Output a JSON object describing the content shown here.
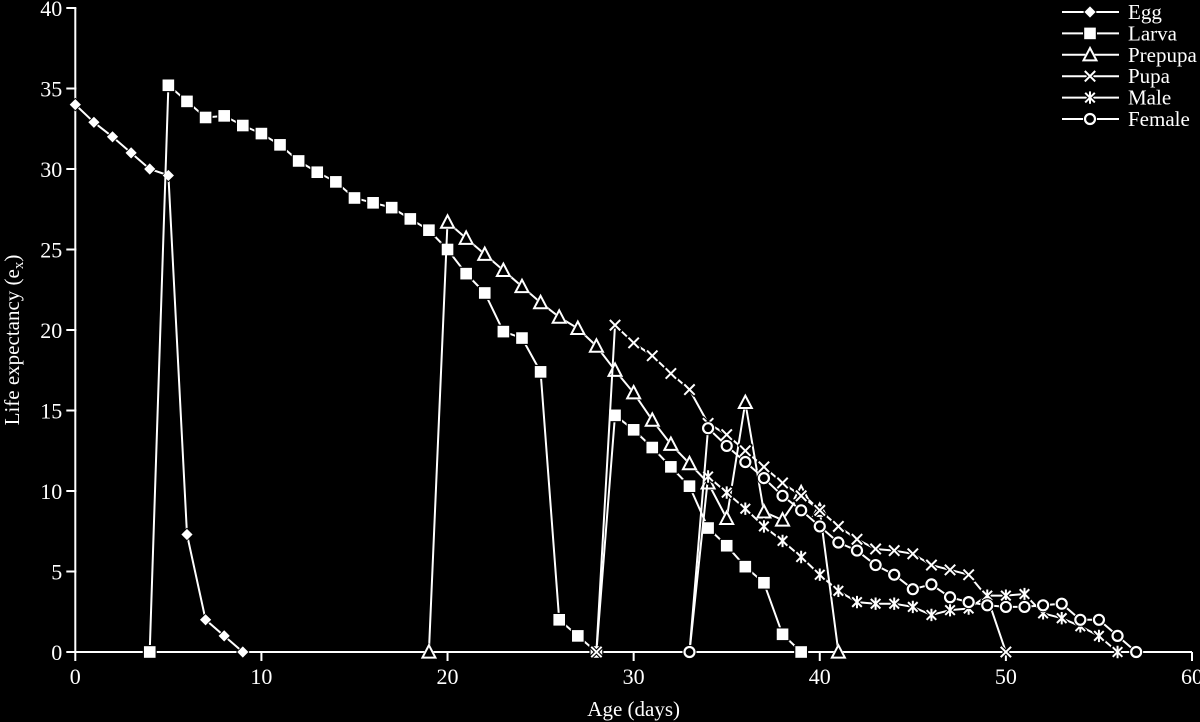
{
  "chart_data": {
    "type": "line",
    "title": "",
    "xlabel": "Age (days)",
    "ylabel_prefix": "Life expectancy (e",
    "ylabel_sub": "x",
    "ylabel_suffix": ")",
    "xlim": [
      0,
      60
    ],
    "ylim": [
      0,
      40
    ],
    "x_ticks": [
      0,
      10,
      20,
      30,
      40,
      50,
      60
    ],
    "y_ticks": [
      0,
      5,
      10,
      15,
      20,
      25,
      30,
      35,
      40
    ],
    "grid": false,
    "legend_position": "top-right",
    "background_color": "#000000",
    "foreground_color": "#ffffff",
    "series": [
      {
        "name": "Egg",
        "marker": "diamond",
        "points": [
          [
            0,
            34
          ],
          [
            1,
            32.9
          ],
          [
            2,
            32
          ],
          [
            3,
            31
          ],
          [
            4,
            30
          ],
          [
            5,
            29.6
          ],
          [
            6,
            7.3
          ],
          [
            7,
            2
          ],
          [
            8,
            1
          ],
          [
            9,
            0
          ]
        ]
      },
      {
        "name": "Larva",
        "marker": "square",
        "points": [
          [
            4,
            0
          ],
          [
            5,
            35.2
          ],
          [
            6,
            34.2
          ],
          [
            7,
            33.2
          ],
          [
            8,
            33.3
          ],
          [
            9,
            32.7
          ],
          [
            10,
            32.2
          ],
          [
            11,
            31.5
          ],
          [
            12,
            30.5
          ],
          [
            13,
            29.8
          ],
          [
            14,
            29.2
          ],
          [
            15,
            28.2
          ],
          [
            16,
            27.9
          ],
          [
            17,
            27.6
          ],
          [
            18,
            26.9
          ],
          [
            19,
            26.2
          ],
          [
            20,
            25
          ],
          [
            21,
            23.5
          ],
          [
            22,
            22.3
          ],
          [
            23,
            19.9
          ],
          [
            24,
            19.5
          ],
          [
            25,
            17.4
          ],
          [
            26,
            2
          ],
          [
            27,
            1
          ],
          [
            28,
            0
          ],
          [
            29,
            14.7
          ],
          [
            30,
            13.8
          ],
          [
            31,
            12.7
          ],
          [
            32,
            11.5
          ],
          [
            33,
            10.3
          ],
          [
            34,
            7.7
          ],
          [
            35,
            6.6
          ],
          [
            36,
            5.3
          ],
          [
            37,
            4.3
          ],
          [
            38,
            1.1
          ],
          [
            39,
            0
          ]
        ]
      },
      {
        "name": "Prepupa",
        "marker": "triangle",
        "points": [
          [
            19,
            0
          ],
          [
            20,
            26.7
          ],
          [
            21,
            25.7
          ],
          [
            22,
            24.7
          ],
          [
            23,
            23.7
          ],
          [
            24,
            22.7
          ],
          [
            25,
            21.7
          ],
          [
            26,
            20.8
          ],
          [
            27,
            20.1
          ],
          [
            28,
            19
          ],
          [
            29,
            17.5
          ],
          [
            30,
            16.1
          ],
          [
            31,
            14.4
          ],
          [
            32,
            12.9
          ],
          [
            33,
            11.7
          ],
          [
            34,
            10.5
          ],
          [
            35,
            8.3
          ],
          [
            36,
            15.5
          ],
          [
            37,
            8.7
          ],
          [
            38,
            8.2
          ],
          [
            39,
            9.9
          ],
          [
            40,
            8.8
          ],
          [
            41,
            0
          ]
        ]
      },
      {
        "name": "Pupa",
        "marker": "x",
        "points": [
          [
            28,
            0
          ],
          [
            29,
            20.3
          ],
          [
            30,
            19.2
          ],
          [
            31,
            18.4
          ],
          [
            32,
            17.3
          ],
          [
            33,
            16.3
          ],
          [
            34,
            14.2
          ],
          [
            35,
            13.5
          ],
          [
            36,
            12.5
          ],
          [
            37,
            11.5
          ],
          [
            38,
            10.5
          ],
          [
            39,
            9.7
          ],
          [
            40,
            8.8
          ],
          [
            41,
            7.8
          ],
          [
            42,
            7
          ],
          [
            43,
            6.4
          ],
          [
            44,
            6.3
          ],
          [
            45,
            6.1
          ],
          [
            46,
            5.4
          ],
          [
            47,
            5.1
          ],
          [
            48,
            4.8
          ],
          [
            49,
            3.4
          ],
          [
            50,
            0
          ]
        ]
      },
      {
        "name": "Male",
        "marker": "star",
        "points": [
          [
            33,
            0
          ],
          [
            34,
            10.9
          ],
          [
            35,
            9.9
          ],
          [
            36,
            8.9
          ],
          [
            37,
            7.8
          ],
          [
            38,
            6.9
          ],
          [
            39,
            5.9
          ],
          [
            40,
            4.8
          ],
          [
            41,
            3.8
          ],
          [
            42,
            3.1
          ],
          [
            43,
            3
          ],
          [
            44,
            3
          ],
          [
            45,
            2.8
          ],
          [
            46,
            2.3
          ],
          [
            47,
            2.6
          ],
          [
            48,
            2.7
          ],
          [
            49,
            3.5
          ],
          [
            50,
            3.5
          ],
          [
            51,
            3.6
          ],
          [
            52,
            2.4
          ],
          [
            53,
            2.1
          ],
          [
            54,
            1.6
          ],
          [
            55,
            1
          ],
          [
            56,
            0
          ]
        ]
      },
      {
        "name": "Female",
        "marker": "circle",
        "points": [
          [
            33,
            0
          ],
          [
            34,
            13.9
          ],
          [
            35,
            12.8
          ],
          [
            36,
            11.8
          ],
          [
            37,
            10.8
          ],
          [
            38,
            9.7
          ],
          [
            39,
            8.8
          ],
          [
            40,
            7.8
          ],
          [
            41,
            6.8
          ],
          [
            42,
            6.3
          ],
          [
            43,
            5.4
          ],
          [
            44,
            4.8
          ],
          [
            45,
            3.9
          ],
          [
            46,
            4.2
          ],
          [
            47,
            3.4
          ],
          [
            48,
            3.1
          ],
          [
            49,
            2.9
          ],
          [
            50,
            2.8
          ],
          [
            51,
            2.8
          ],
          [
            52,
            2.9
          ],
          [
            53,
            3
          ],
          [
            54,
            2
          ],
          [
            55,
            2
          ],
          [
            56,
            1
          ],
          [
            57,
            0
          ]
        ]
      }
    ]
  }
}
